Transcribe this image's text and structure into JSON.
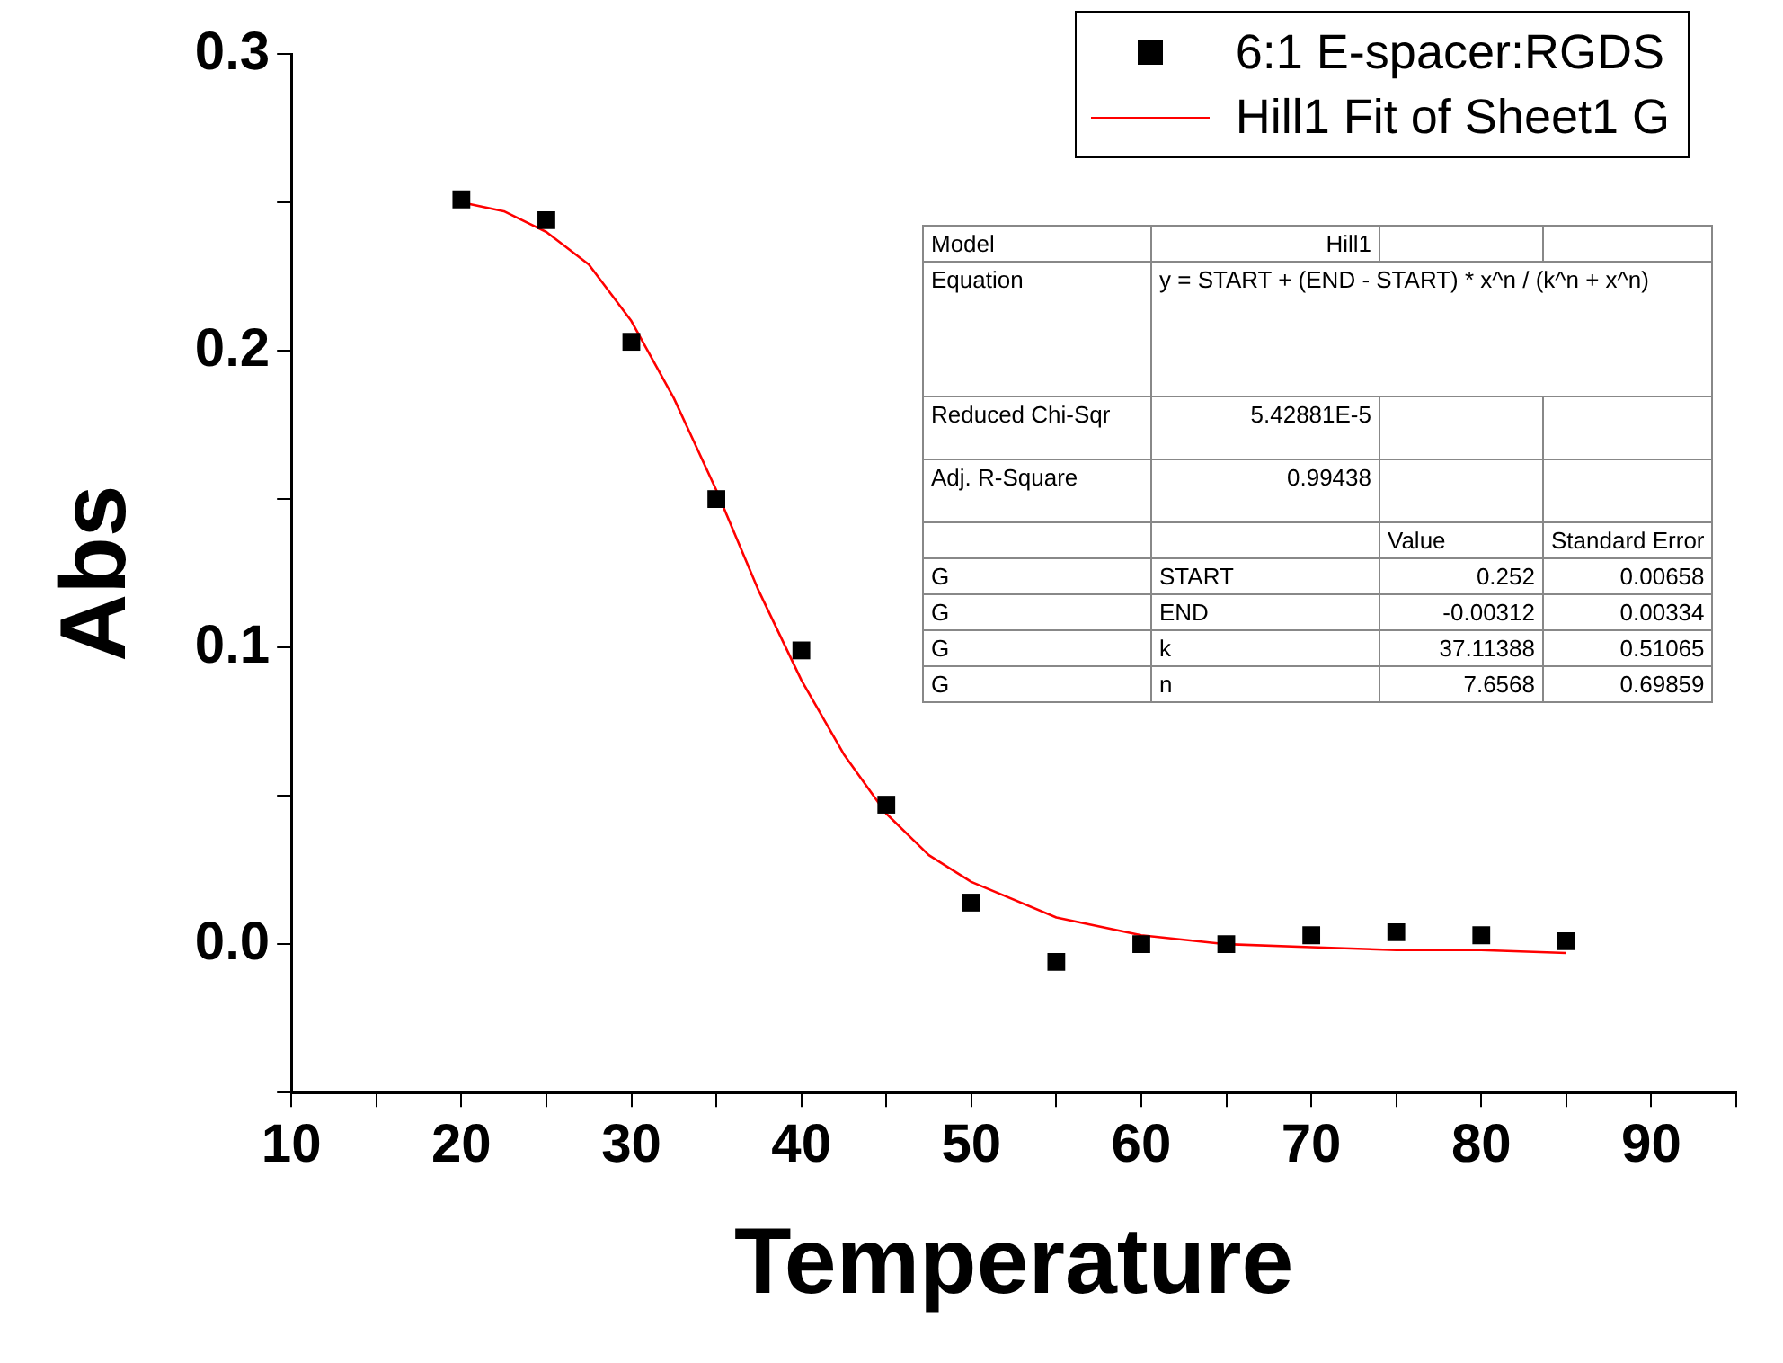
{
  "chart_data": {
    "type": "scatter",
    "xlabel": "Temperature",
    "ylabel": "Abs",
    "xlim": [
      10,
      95
    ],
    "xticks": [
      10,
      {
        "value": 15,
        "label": null
      },
      20,
      {
        "value": 25,
        "label": null
      },
      30,
      {
        "value": 35,
        "label": null
      },
      40,
      {
        "value": 45,
        "label": null
      },
      50,
      {
        "value": 55,
        "label": null
      },
      60,
      {
        "value": 65,
        "label": null
      },
      70,
      {
        "value": 75,
        "label": null
      },
      80,
      {
        "value": 85,
        "label": null
      },
      90,
      {
        "value": 95,
        "label": null
      }
    ],
    "ylim": [
      -0.05,
      0.3
    ],
    "yticks": [
      {
        "value": -0.05,
        "label": null
      },
      {
        "value": 0,
        "label": "0.0"
      },
      {
        "value": 0.05,
        "label": null
      },
      0.1,
      {
        "value": 0.15,
        "label": null
      },
      0.2,
      {
        "value": 0.25,
        "label": null
      },
      0.3
    ],
    "grid": false,
    "legend": "top right",
    "series": [
      {
        "name": "6:1 E-spacer:RGDS",
        "marker": "square",
        "color": "#000000",
        "x": [
          20,
          25,
          30,
          35,
          40,
          45,
          50,
          55,
          60,
          65,
          70,
          75,
          80,
          85
        ],
        "values": [
          0.251,
          0.244,
          0.203,
          0.15,
          0.099,
          0.047,
          0.014,
          -0.006,
          0.0,
          0.0,
          0.003,
          0.004,
          0.003,
          0.001
        ]
      },
      {
        "name": "Hill1 Fit of Sheet1 G",
        "type": "line",
        "marker": "none",
        "line_style": "solid",
        "color": "#ff0000",
        "x": [
          20,
          22.5,
          25,
          27.5,
          30,
          32.5,
          35,
          37.5,
          40,
          42.5,
          45,
          47.5,
          50,
          55,
          60,
          65,
          70,
          75,
          80,
          85
        ],
        "values": [
          0.25,
          0.247,
          0.24,
          0.229,
          0.21,
          0.184,
          0.153,
          0.119,
          0.089,
          0.064,
          0.044,
          0.03,
          0.021,
          0.009,
          0.003,
          0.0,
          -0.001,
          -0.002,
          -0.002,
          -0.003
        ]
      }
    ],
    "annotations": [
      "Model",
      "Hill1",
      "Equation",
      "y = START + (END - START) * x^n  /  (k^n  +  x^n)",
      "Reduced Chi-Sqr",
      "5.42881E-5",
      "Adj. R-Square",
      "0.99438",
      "Value",
      "Standard Error",
      "G",
      "START",
      "0.252",
      "0.00658",
      "G",
      "END",
      "-0.00312",
      "0.00334",
      "G",
      "k",
      "37.11388",
      "0.51065",
      "G",
      "n",
      "7.6568",
      "0.69859"
    ]
  }
}
